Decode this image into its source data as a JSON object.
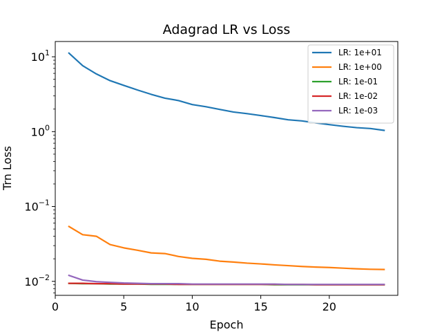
{
  "chart_data": {
    "type": "line",
    "title": "Adagrad LR vs Loss",
    "xlabel": "Epoch",
    "ylabel": "Trn Loss",
    "yscale": "log",
    "xlim": [
      0,
      25
    ],
    "ylim": [
      0.0065,
      16
    ],
    "xticks": [
      0,
      5,
      10,
      15,
      20
    ],
    "yticks": [
      {
        "value": 0.01,
        "base": "10",
        "exp": "−2"
      },
      {
        "value": 0.1,
        "base": "10",
        "exp": "−1"
      },
      {
        "value": 1,
        "base": "10",
        "exp": "0"
      },
      {
        "value": 10,
        "base": "10",
        "exp": "1"
      }
    ],
    "grid": false,
    "legend_position": "top-right",
    "x": [
      1,
      2,
      3,
      4,
      5,
      6,
      7,
      8,
      9,
      10,
      11,
      12,
      13,
      14,
      15,
      16,
      17,
      18,
      19,
      20,
      21,
      22,
      23,
      24
    ],
    "series": [
      {
        "name": "LR: 1e+01",
        "color": "#1f77b4",
        "values": [
          11.2,
          7.6,
          5.9,
          4.8,
          4.15,
          3.6,
          3.15,
          2.8,
          2.6,
          2.3,
          2.15,
          1.98,
          1.83,
          1.74,
          1.64,
          1.54,
          1.44,
          1.39,
          1.31,
          1.24,
          1.18,
          1.13,
          1.1,
          1.04
        ]
      },
      {
        "name": "LR: 1e+00",
        "color": "#ff7f0e",
        "values": [
          0.054,
          0.042,
          0.04,
          0.031,
          0.028,
          0.026,
          0.024,
          0.0235,
          0.0215,
          0.0203,
          0.0197,
          0.0186,
          0.0181,
          0.0175,
          0.0171,
          0.0166,
          0.0162,
          0.0158,
          0.0155,
          0.0153,
          0.015,
          0.0147,
          0.0145,
          0.0144
        ]
      },
      {
        "name": "LR: 1e-01",
        "color": "#2ca02c",
        "values": [
          0.0094,
          0.0093,
          0.0093,
          0.0092,
          0.0092,
          0.0092,
          0.0091,
          0.0091,
          0.0091,
          0.0091,
          0.0091,
          0.0091,
          0.0091,
          0.0091,
          0.0091,
          0.009,
          0.009,
          0.009,
          0.009,
          0.009,
          0.009,
          0.009,
          0.009,
          0.009
        ]
      },
      {
        "name": "LR: 1e-02",
        "color": "#d62728",
        "values": [
          0.0094,
          0.0094,
          0.0093,
          0.0093,
          0.0092,
          0.0092,
          0.0092,
          0.0092,
          0.0091,
          0.0091,
          0.0091,
          0.0091,
          0.0091,
          0.0091,
          0.0091,
          0.0091,
          0.0091,
          0.0091,
          0.009,
          0.009,
          0.009,
          0.009,
          0.009,
          0.009
        ]
      },
      {
        "name": "LR: 1e-03",
        "color": "#9467bd",
        "values": [
          0.012,
          0.0104,
          0.0099,
          0.0097,
          0.0095,
          0.0094,
          0.0093,
          0.0093,
          0.0093,
          0.0092,
          0.0092,
          0.0092,
          0.0092,
          0.0092,
          0.0092,
          0.0092,
          0.0091,
          0.0091,
          0.0091,
          0.0091,
          0.0091,
          0.0091,
          0.0091,
          0.0091
        ]
      }
    ]
  }
}
